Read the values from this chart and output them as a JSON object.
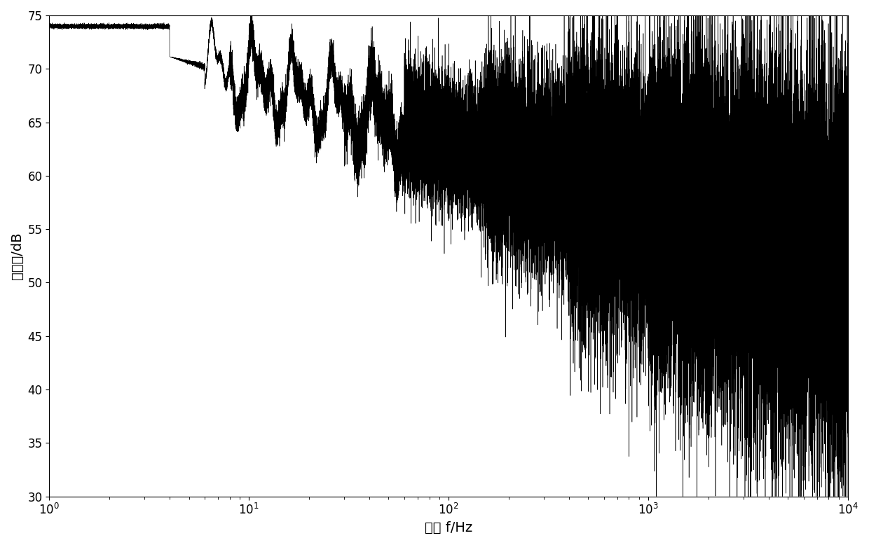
{
  "title": "",
  "xlabel": "频率 f/Hz",
  "ylabel": "声功率/dB",
  "xlim": [
    1,
    10000
  ],
  "ylim": [
    30,
    75
  ],
  "yticks": [
    30,
    35,
    40,
    45,
    50,
    55,
    60,
    65,
    70,
    75
  ],
  "xticks": [
    1,
    10,
    100,
    1000,
    10000
  ],
  "line_color": "#000000",
  "background_color": "#ffffff",
  "seed": 1234,
  "num_points": 50000,
  "xlabel_fontsize": 14,
  "ylabel_fontsize": 14,
  "tick_fontsize": 12,
  "linewidth": 0.4
}
